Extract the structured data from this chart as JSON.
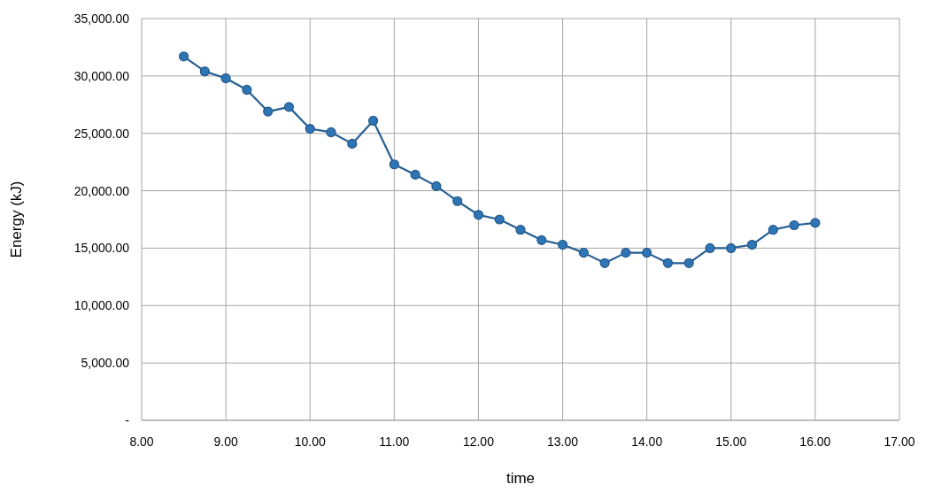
{
  "chart_data": {
    "type": "line",
    "xlabel": "time",
    "ylabel": "Energy (kJ)",
    "x": [
      8.5,
      8.75,
      9,
      9.25,
      9.5,
      9.75,
      10,
      10.25,
      10.5,
      10.75,
      11,
      11.25,
      11.5,
      11.75,
      12,
      12.25,
      12.5,
      12.75,
      13,
      13.25,
      13.5,
      13.75,
      14,
      14.25,
      14.5,
      14.75,
      15,
      15.25,
      15.5,
      15.75,
      16
    ],
    "series": [
      {
        "color": "#2e75b6",
        "values": [
          31700,
          30400,
          29800,
          28800,
          26900,
          27300,
          25400,
          25100,
          24100,
          26100,
          22300,
          21400,
          20400,
          19100,
          17900,
          17500,
          16600,
          15700,
          15300,
          14600,
          13700,
          14600,
          14600,
          13700,
          13700,
          15000,
          15000,
          15300,
          16600,
          17000,
          17200
        ]
      }
    ],
    "xlim": [
      8,
      17
    ],
    "xticks": [
      {
        "value": 8,
        "label": "8.00"
      },
      {
        "value": 9,
        "label": "9.00"
      },
      {
        "value": 10,
        "label": "10.00"
      },
      {
        "value": 11,
        "label": "11.00"
      },
      {
        "value": 12,
        "label": "12.00"
      },
      {
        "value": 13,
        "label": "13.00"
      },
      {
        "value": 14,
        "label": "14.00"
      },
      {
        "value": 15,
        "label": "15.00"
      },
      {
        "value": 16,
        "label": "16.00"
      },
      {
        "value": 17,
        "label": "17.00"
      }
    ],
    "ylim": [
      0,
      35000
    ],
    "yticks": [
      {
        "value": 0,
        "label": "-"
      },
      {
        "value": 5000,
        "label": "5,000.00"
      },
      {
        "value": 10000,
        "label": "10,000.00"
      },
      {
        "value": 15000,
        "label": "15,000.00"
      },
      {
        "value": 20000,
        "label": "20,000.00"
      },
      {
        "value": 25000,
        "label": "25,000.00"
      },
      {
        "value": 30000,
        "label": "30,000.00"
      },
      {
        "value": 35000,
        "label": "35,000.00"
      }
    ],
    "grid": true,
    "marker": "circle",
    "line_style": "solid"
  }
}
